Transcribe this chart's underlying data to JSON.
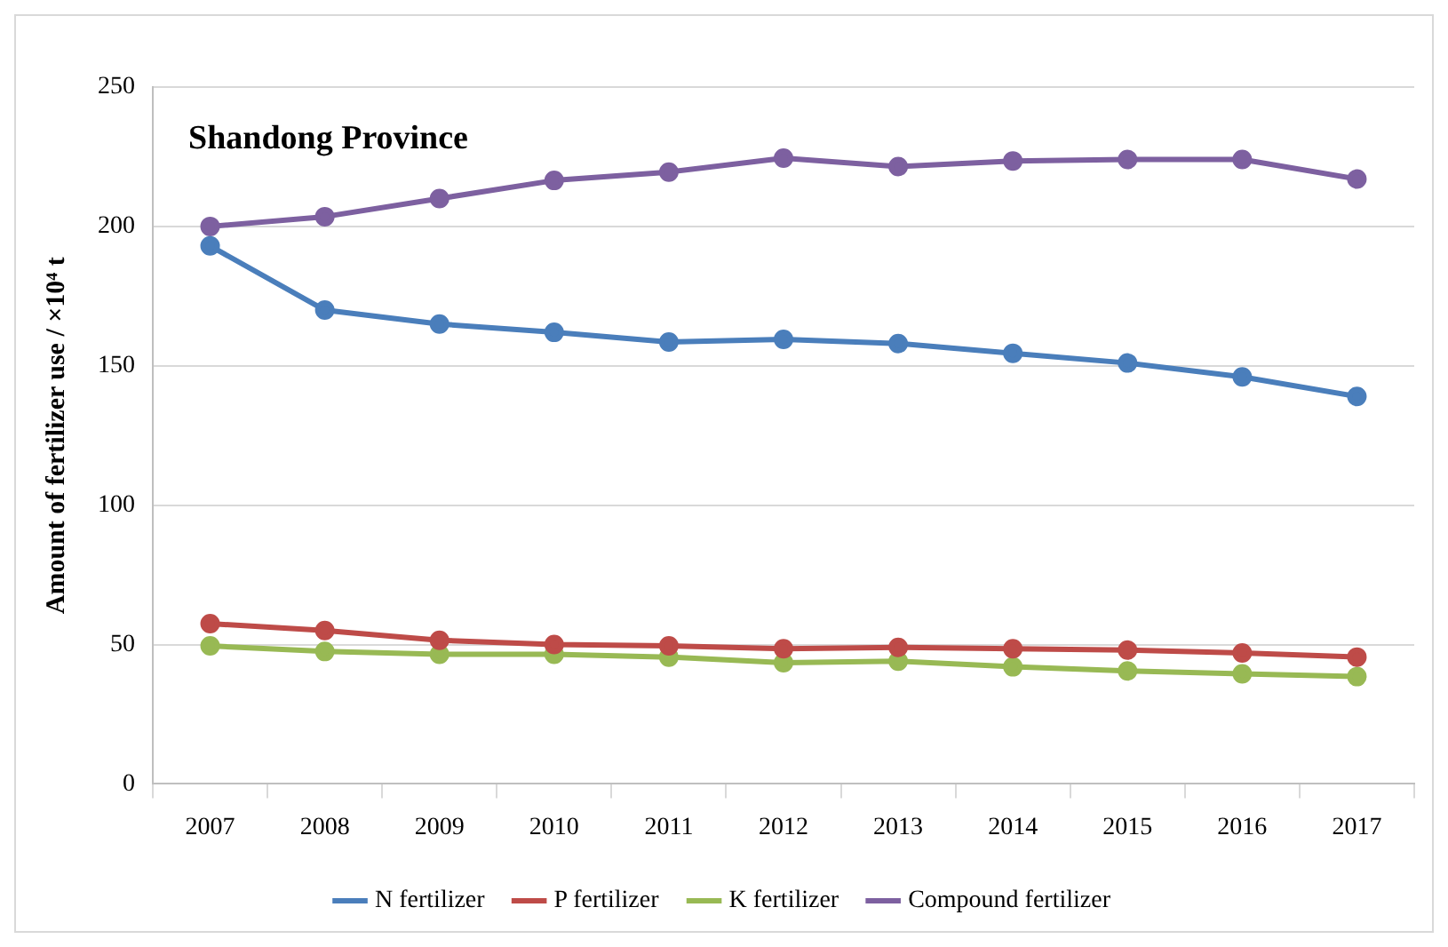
{
  "chart_data": {
    "type": "line",
    "title": "Shandong Province",
    "ylabel": "Amount of fertilizer use / ×10⁴ t",
    "categories": [
      "2007",
      "2008",
      "2009",
      "2010",
      "2011",
      "2012",
      "2013",
      "2014",
      "2015",
      "2016",
      "2017"
    ],
    "series": [
      {
        "name": "N fertilizer",
        "color": "#4a7ebb",
        "values": [
          193,
          170,
          165,
          162,
          158.5,
          159.5,
          158,
          154.5,
          151,
          146,
          139
        ]
      },
      {
        "name": "P fertilizer",
        "color": "#be4b48",
        "values": [
          57.5,
          55,
          51.5,
          50,
          49.5,
          48.5,
          49,
          48.5,
          48,
          47,
          45.5
        ]
      },
      {
        "name": "K fertilizer",
        "color": "#98b954",
        "values": [
          49.5,
          47.5,
          46.5,
          46.5,
          45.5,
          43.5,
          44,
          42,
          40.5,
          39.5,
          38.5
        ]
      },
      {
        "name": "Compound fertilizer",
        "color": "#7d60a0",
        "values": [
          200,
          203.5,
          210,
          216.5,
          219.5,
          224.5,
          221.5,
          223.5,
          224,
          224,
          217
        ]
      }
    ],
    "ylim": [
      0,
      250
    ],
    "yticks": [
      0,
      50,
      100,
      150,
      200,
      250
    ],
    "grid": "y",
    "legend": "bottom",
    "marker": "circle",
    "line_style": "solid"
  }
}
